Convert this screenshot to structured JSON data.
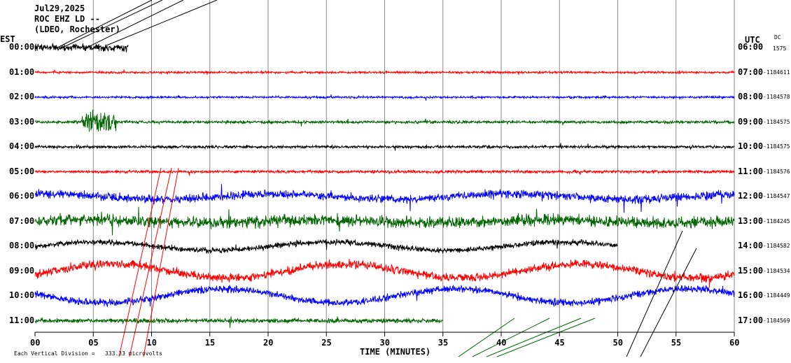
{
  "header": {
    "date": "Jul29,2025",
    "station": "ROC EHZ LD --",
    "network": "(LDEO, Rochester)"
  },
  "left_zone": "EST",
  "right_zone": "UTC",
  "dc_label": "DC",
  "dc_value": "1575",
  "footer": {
    "xlabel": "TIME (MINUTES)",
    "scale_prefix": "Each Vertical Division =",
    "scale_value": "333.33 microvolts"
  },
  "chart_data": {
    "type": "line",
    "title": "",
    "xlabel": "TIME (MINUTES)",
    "ylabel": "",
    "xlim": [
      0,
      60
    ],
    "xticks": [
      "00",
      "05",
      "10",
      "15",
      "20",
      "25",
      "30",
      "35",
      "40",
      "45",
      "50",
      "55",
      "60"
    ],
    "grid": true,
    "rows": [
      {
        "est": "00:00",
        "utc": "06:00",
        "dc": "",
        "color": "#000000",
        "start": 0,
        "end": 8,
        "amp": 5,
        "swell": 0,
        "event": null
      },
      {
        "est": "01:00",
        "utc": "07:00",
        "dc": "-1184611",
        "color": "#ff0000",
        "start": 0,
        "end": 60,
        "amp": 1.5,
        "swell": 0,
        "event": null
      },
      {
        "est": "02:00",
        "utc": "08:00",
        "dc": "-1184578",
        "color": "#0000ff",
        "start": 0,
        "end": 60,
        "amp": 1.5,
        "swell": 0,
        "event": null
      },
      {
        "est": "03:00",
        "utc": "09:00",
        "dc": "-1184575",
        "color": "#006400",
        "start": 0,
        "end": 60,
        "amp": 2,
        "swell": 0,
        "event": [
          4,
          7,
          15
        ]
      },
      {
        "est": "04:00",
        "utc": "10:00",
        "dc": "-1184575",
        "color": "#000000",
        "start": 0,
        "end": 60,
        "amp": 2,
        "swell": 0,
        "event": null
      },
      {
        "est": "05:00",
        "utc": "11:00",
        "dc": "-1184576",
        "color": "#ff0000",
        "start": 0,
        "end": 60,
        "amp": 2,
        "swell": 0,
        "event": null
      },
      {
        "est": "06:00",
        "utc": "12:00",
        "dc": "-1184547",
        "color": "#0000ff",
        "start": 0,
        "end": 60,
        "amp": 6,
        "swell": 4,
        "event": null
      },
      {
        "est": "07:00",
        "utc": "13:00",
        "dc": "-1184245",
        "color": "#006400",
        "start": 0,
        "end": 60,
        "amp": 8,
        "swell": 2,
        "event": null
      },
      {
        "est": "08:00",
        "utc": "14:00",
        "dc": "-1184582",
        "color": "#000000",
        "start": 0,
        "end": 50,
        "amp": 4,
        "swell": 6,
        "event": null
      },
      {
        "est": "09:00",
        "utc": "15:00",
        "dc": "-1184534",
        "color": "#ff0000",
        "start": 0,
        "end": 60,
        "amp": 6,
        "swell": 10,
        "event": null
      },
      {
        "est": "10:00",
        "utc": "16:00",
        "dc": "-1184449",
        "color": "#0000ff",
        "start": 0,
        "end": 60,
        "amp": 5,
        "swell": 10,
        "event": null
      },
      {
        "est": "11:00",
        "utc": "17:00",
        "dc": "-1184569",
        "color": "#006400",
        "start": 0,
        "end": 35,
        "amp": 3,
        "swell": 0,
        "event": null
      }
    ]
  }
}
